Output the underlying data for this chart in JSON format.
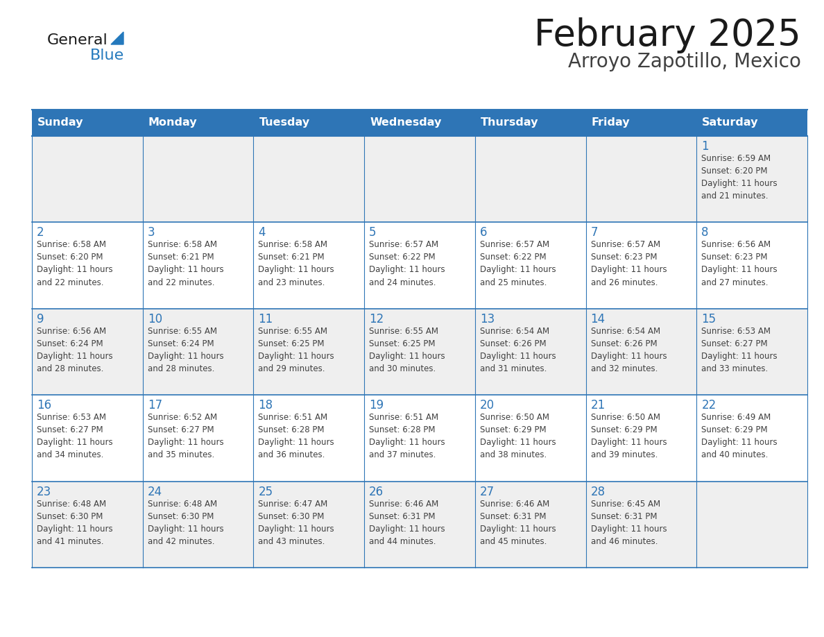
{
  "title": "February 2025",
  "subtitle": "Arroyo Zapotillo, Mexico",
  "days_of_week": [
    "Sunday",
    "Monday",
    "Tuesday",
    "Wednesday",
    "Thursday",
    "Friday",
    "Saturday"
  ],
  "header_bg": "#2E75B6",
  "header_text": "#FFFFFF",
  "cell_bg_white": "#FFFFFF",
  "cell_bg_gray": "#EFEFEF",
  "border_color": "#2E75B6",
  "day_num_color": "#2E75B6",
  "info_color": "#404040",
  "title_color": "#1a1a1a",
  "subtitle_color": "#404040",
  "logo_general_color": "#1a1a1a",
  "logo_blue_color": "#2479BD",
  "calendar_data": [
    [
      null,
      null,
      null,
      null,
      null,
      null,
      {
        "day": "1",
        "sunrise": "6:59 AM",
        "sunset": "6:20 PM",
        "daylight": "11 hours and 21 minutes."
      }
    ],
    [
      {
        "day": "2",
        "sunrise": "6:58 AM",
        "sunset": "6:20 PM",
        "daylight": "11 hours and 22 minutes."
      },
      {
        "day": "3",
        "sunrise": "6:58 AM",
        "sunset": "6:21 PM",
        "daylight": "11 hours and 22 minutes."
      },
      {
        "day": "4",
        "sunrise": "6:58 AM",
        "sunset": "6:21 PM",
        "daylight": "11 hours and 23 minutes."
      },
      {
        "day": "5",
        "sunrise": "6:57 AM",
        "sunset": "6:22 PM",
        "daylight": "11 hours and 24 minutes."
      },
      {
        "day": "6",
        "sunrise": "6:57 AM",
        "sunset": "6:22 PM",
        "daylight": "11 hours and 25 minutes."
      },
      {
        "day": "7",
        "sunrise": "6:57 AM",
        "sunset": "6:23 PM",
        "daylight": "11 hours and 26 minutes."
      },
      {
        "day": "8",
        "sunrise": "6:56 AM",
        "sunset": "6:23 PM",
        "daylight": "11 hours and 27 minutes."
      }
    ],
    [
      {
        "day": "9",
        "sunrise": "6:56 AM",
        "sunset": "6:24 PM",
        "daylight": "11 hours and 28 minutes."
      },
      {
        "day": "10",
        "sunrise": "6:55 AM",
        "sunset": "6:24 PM",
        "daylight": "11 hours and 28 minutes."
      },
      {
        "day": "11",
        "sunrise": "6:55 AM",
        "sunset": "6:25 PM",
        "daylight": "11 hours and 29 minutes."
      },
      {
        "day": "12",
        "sunrise": "6:55 AM",
        "sunset": "6:25 PM",
        "daylight": "11 hours and 30 minutes."
      },
      {
        "day": "13",
        "sunrise": "6:54 AM",
        "sunset": "6:26 PM",
        "daylight": "11 hours and 31 minutes."
      },
      {
        "day": "14",
        "sunrise": "6:54 AM",
        "sunset": "6:26 PM",
        "daylight": "11 hours and 32 minutes."
      },
      {
        "day": "15",
        "sunrise": "6:53 AM",
        "sunset": "6:27 PM",
        "daylight": "11 hours and 33 minutes."
      }
    ],
    [
      {
        "day": "16",
        "sunrise": "6:53 AM",
        "sunset": "6:27 PM",
        "daylight": "11 hours and 34 minutes."
      },
      {
        "day": "17",
        "sunrise": "6:52 AM",
        "sunset": "6:27 PM",
        "daylight": "11 hours and 35 minutes."
      },
      {
        "day": "18",
        "sunrise": "6:51 AM",
        "sunset": "6:28 PM",
        "daylight": "11 hours and 36 minutes."
      },
      {
        "day": "19",
        "sunrise": "6:51 AM",
        "sunset": "6:28 PM",
        "daylight": "11 hours and 37 minutes."
      },
      {
        "day": "20",
        "sunrise": "6:50 AM",
        "sunset": "6:29 PM",
        "daylight": "11 hours and 38 minutes."
      },
      {
        "day": "21",
        "sunrise": "6:50 AM",
        "sunset": "6:29 PM",
        "daylight": "11 hours and 39 minutes."
      },
      {
        "day": "22",
        "sunrise": "6:49 AM",
        "sunset": "6:29 PM",
        "daylight": "11 hours and 40 minutes."
      }
    ],
    [
      {
        "day": "23",
        "sunrise": "6:48 AM",
        "sunset": "6:30 PM",
        "daylight": "11 hours and 41 minutes."
      },
      {
        "day": "24",
        "sunrise": "6:48 AM",
        "sunset": "6:30 PM",
        "daylight": "11 hours and 42 minutes."
      },
      {
        "day": "25",
        "sunrise": "6:47 AM",
        "sunset": "6:30 PM",
        "daylight": "11 hours and 43 minutes."
      },
      {
        "day": "26",
        "sunrise": "6:46 AM",
        "sunset": "6:31 PM",
        "daylight": "11 hours and 44 minutes."
      },
      {
        "day": "27",
        "sunrise": "6:46 AM",
        "sunset": "6:31 PM",
        "daylight": "11 hours and 45 minutes."
      },
      {
        "day": "28",
        "sunrise": "6:45 AM",
        "sunset": "6:31 PM",
        "daylight": "11 hours and 46 minutes."
      },
      null
    ]
  ],
  "row_colors": [
    "#EFEFEF",
    "#FFFFFF",
    "#EFEFEF",
    "#FFFFFF",
    "#EFEFEF"
  ]
}
